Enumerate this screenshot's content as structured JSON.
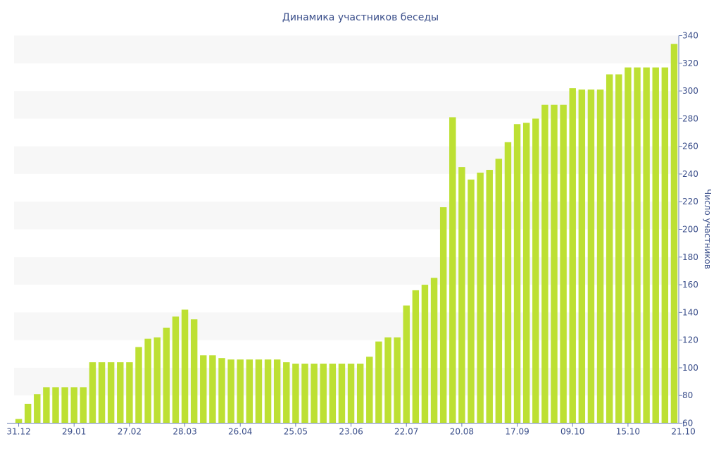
{
  "chart_data": {
    "type": "bar",
    "title": "Динамика участников беседы",
    "xlabel": "",
    "ylabel": "Число участников",
    "ylim": [
      60,
      340
    ],
    "y_ticks": [
      60,
      80,
      100,
      120,
      140,
      160,
      180,
      200,
      220,
      240,
      260,
      280,
      300,
      320,
      340
    ],
    "x_tick_labels": [
      {
        "label": "31.12",
        "index": 0
      },
      {
        "label": "29.01",
        "index": 6
      },
      {
        "label": "27.02",
        "index": 12
      },
      {
        "label": "28.03",
        "index": 18
      },
      {
        "label": "26.04",
        "index": 24
      },
      {
        "label": "25.05",
        "index": 30
      },
      {
        "label": "23.06",
        "index": 36
      },
      {
        "label": "22.07",
        "index": 42
      },
      {
        "label": "20.08",
        "index": 48
      },
      {
        "label": "17.09",
        "index": 54
      },
      {
        "label": "09.10",
        "index": 60
      },
      {
        "label": "15.10",
        "index": 66
      },
      {
        "label": "21.10",
        "index": 72
      }
    ],
    "values": [
      63,
      74,
      81,
      86,
      86,
      86,
      86,
      86,
      104,
      104,
      104,
      104,
      104,
      115,
      121,
      122,
      129,
      137,
      142,
      135,
      109,
      109,
      107,
      106,
      106,
      106,
      106,
      106,
      106,
      104,
      103,
      103,
      103,
      103,
      103,
      103,
      103,
      103,
      108,
      119,
      122,
      122,
      145,
      156,
      160,
      165,
      216,
      281,
      245,
      236,
      241,
      243,
      251,
      263,
      276,
      277,
      280,
      290,
      290,
      290,
      302,
      301,
      301,
      301,
      312,
      312,
      317,
      317,
      317,
      317,
      317,
      334
    ],
    "bar_color": "#bde033",
    "band_color": "#f7f7f7",
    "text_color": "#3a4e8a",
    "axis_color": "#6b7fb4",
    "grid": false,
    "y_axis_position": "right",
    "legend": "none"
  }
}
